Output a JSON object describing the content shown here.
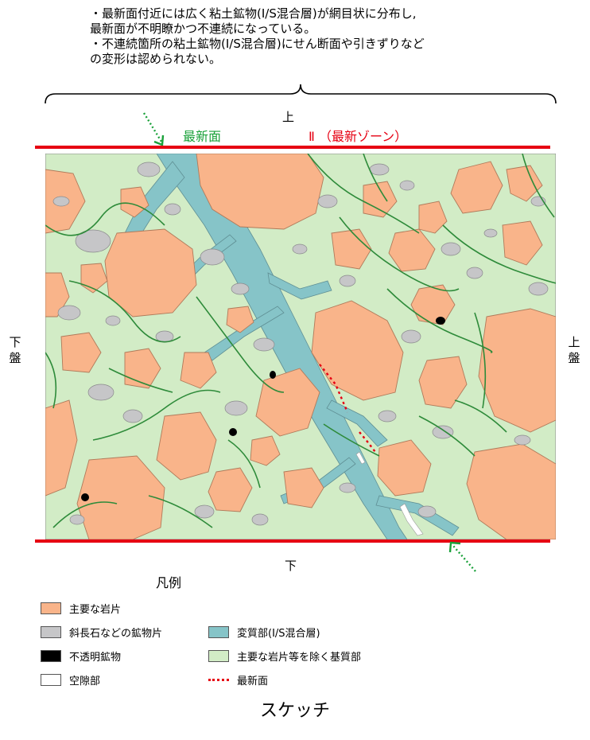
{
  "notes": [
    "・最新面付近には広く粘土鉱物(I/S混合層)が網目状に分布し,",
    " 最新面が不明瞭かつ不連続になっている。",
    "・不連続箇所の粘土鉱物(I/S混合層)にせん断面や引きずりなど",
    " の変形は認められない。"
  ],
  "labels": {
    "top": "上",
    "bottom": "下",
    "newest_surface": "最新面",
    "zone": "Ⅱ （最新ゾーン）",
    "left_side": "下盤",
    "right_side": "上盤"
  },
  "legend": {
    "title": "凡例",
    "items": [
      {
        "label": "主要な岩片",
        "color": "#f9b48a"
      },
      {
        "label": "斜長石などの鉱物片",
        "color": "#c6c6c8"
      },
      {
        "label": "不透明鉱物",
        "color": "#000000"
      },
      {
        "label": "空隙部",
        "color": "#ffffff"
      },
      {
        "label": "変質部(I/S混合層)",
        "color": "#86c4c8"
      },
      {
        "label": "主要な岩片等を除く基質部",
        "color": "#d2ecc6"
      },
      {
        "label": "最新面",
        "color": "#e60012"
      }
    ]
  },
  "caption": "スケッチ",
  "colors": {
    "red_line": "#e60012",
    "green_arrow": "#1aa13a",
    "vein_green": "#2e8b3a"
  }
}
